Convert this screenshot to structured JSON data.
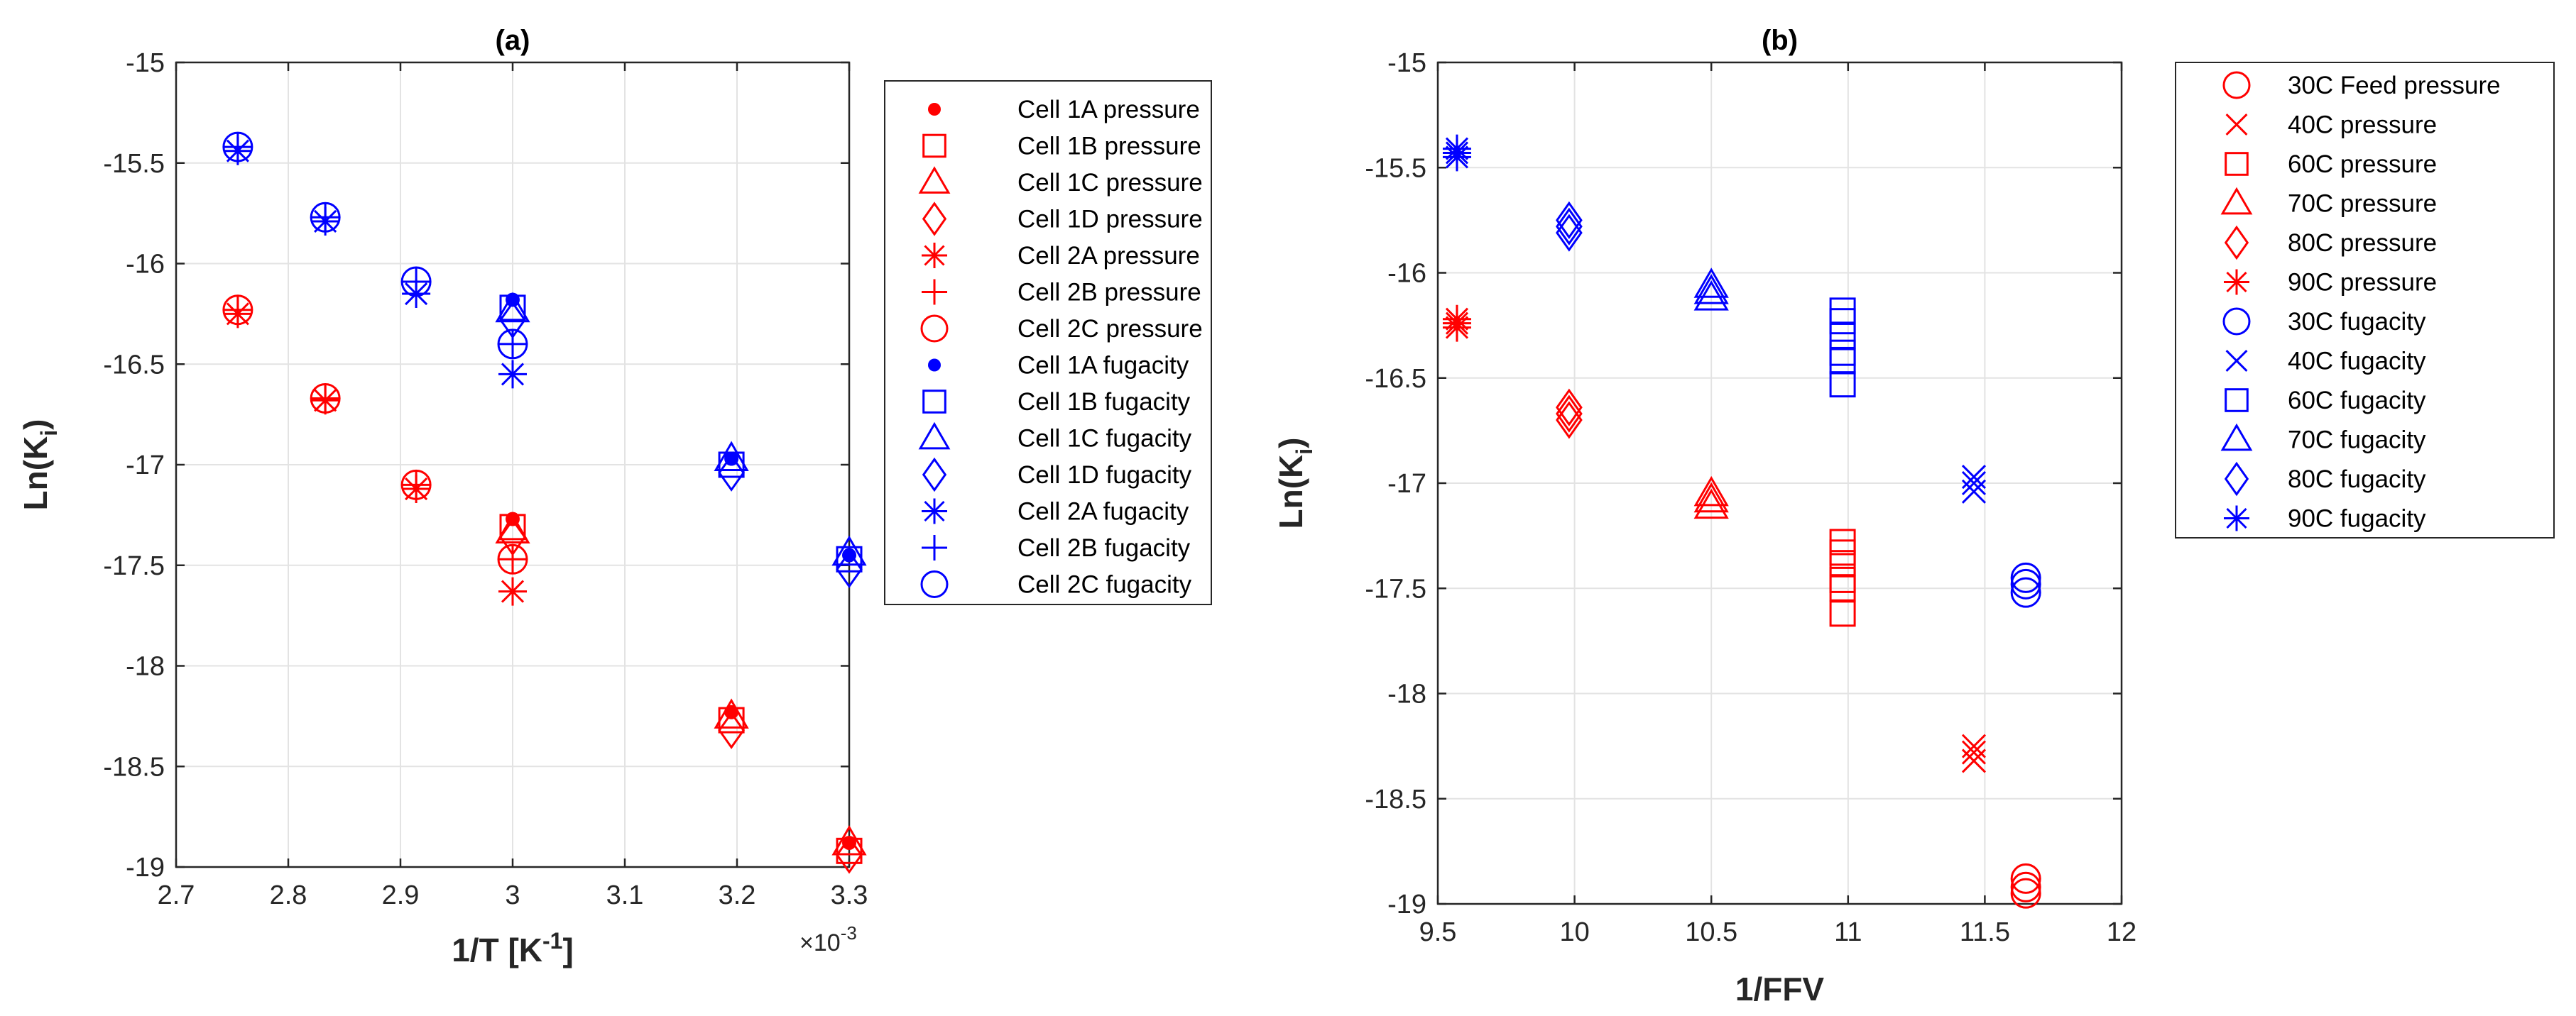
{
  "colors": {
    "red": "#ff0000",
    "blue": "#0000ff",
    "grid": "#e3e3e3",
    "axis": "#262626"
  },
  "chart_data": [
    {
      "type": "scatter",
      "title": "(a)",
      "xlabel_main": "1/T [K",
      "xlabel_sup": "-1",
      "xlabel_end": "]",
      "x_exponent_base": "×10",
      "x_exponent_power": "-3",
      "ylabel_main": "Ln(K",
      "ylabel_sub": "i",
      "ylabel_end": ")",
      "xlim": [
        2.7,
        3.3
      ],
      "ylim": [
        -19,
        -15
      ],
      "xticks": [
        2.7,
        2.8,
        2.9,
        3.0,
        3.1,
        3.2,
        3.3
      ],
      "xtick_labels": [
        "2.7",
        "2.8",
        "2.9",
        "3",
        "3.1",
        "3.2",
        "3.3"
      ],
      "yticks": [
        -15,
        -15.5,
        -16,
        -16.5,
        -17,
        -17.5,
        -18,
        -18.5,
        -19
      ],
      "ytick_labels": [
        "-15",
        "-15.5",
        "-16",
        "-16.5",
        "-17",
        "-17.5",
        "-18",
        "-18.5",
        "-19"
      ],
      "grid": true,
      "legend_position": "outside-right",
      "series": [
        {
          "name": "Cell 1A pressure",
          "marker": "dot",
          "color": "red",
          "x": [
            3.0,
            3.195,
            3.3
          ],
          "y": [
            -17.27,
            -18.23,
            -18.88
          ]
        },
        {
          "name": "Cell 1B pressure",
          "marker": "square",
          "color": "red",
          "x": [
            3.0,
            3.195,
            3.3
          ],
          "y": [
            -17.31,
            -18.27,
            -18.92
          ]
        },
        {
          "name": "Cell 1C pressure",
          "marker": "triangle",
          "color": "red",
          "x": [
            3.0,
            3.195,
            3.3
          ],
          "y": [
            -17.33,
            -18.25,
            -18.88
          ]
        },
        {
          "name": "Cell 1D pressure",
          "marker": "diamond",
          "color": "red",
          "x": [
            3.0,
            3.195,
            3.3
          ],
          "y": [
            -17.36,
            -18.32,
            -18.94
          ]
        },
        {
          "name": "Cell 2A pressure",
          "marker": "asterisk",
          "color": "red",
          "x": [
            2.755,
            2.833,
            2.914,
            3.0
          ],
          "y": [
            -16.25,
            -16.68,
            -17.12,
            -17.63
          ]
        },
        {
          "name": "Cell 2B pressure",
          "marker": "plus",
          "color": "red",
          "x": [
            2.755,
            2.833,
            2.914,
            3.0
          ],
          "y": [
            -16.23,
            -16.67,
            -17.1,
            -17.47
          ]
        },
        {
          "name": "Cell 2C pressure",
          "marker": "circle",
          "color": "red",
          "x": [
            2.755,
            2.833,
            2.914,
            3.0
          ],
          "y": [
            -16.23,
            -16.67,
            -17.1,
            -17.47
          ]
        },
        {
          "name": "Cell 1A fugacity",
          "marker": "dot",
          "color": "blue",
          "x": [
            3.0,
            3.195,
            3.3
          ],
          "y": [
            -16.18,
            -16.97,
            -17.45
          ]
        },
        {
          "name": "Cell 1B fugacity",
          "marker": "square",
          "color": "blue",
          "x": [
            3.0,
            3.195,
            3.3
          ],
          "y": [
            -16.22,
            -17.0,
            -17.47
          ]
        },
        {
          "name": "Cell 1C fugacity",
          "marker": "triangle",
          "color": "blue",
          "x": [
            3.0,
            3.195,
            3.3
          ],
          "y": [
            -16.23,
            -16.97,
            -17.44
          ]
        },
        {
          "name": "Cell 1D fugacity",
          "marker": "diamond",
          "color": "blue",
          "x": [
            3.0,
            3.195,
            3.3
          ],
          "y": [
            -16.28,
            -17.04,
            -17.52
          ]
        },
        {
          "name": "Cell 2A fugacity",
          "marker": "asterisk",
          "color": "blue",
          "x": [
            2.755,
            2.833,
            2.914,
            3.0
          ],
          "y": [
            -15.44,
            -15.79,
            -16.15,
            -16.55
          ]
        },
        {
          "name": "Cell 2B fugacity",
          "marker": "plus",
          "color": "blue",
          "x": [
            2.755,
            2.833,
            2.914,
            3.0
          ],
          "y": [
            -15.42,
            -15.77,
            -16.09,
            -16.4
          ]
        },
        {
          "name": "Cell 2C fugacity",
          "marker": "circle",
          "color": "blue",
          "x": [
            2.755,
            2.833,
            2.914,
            3.0
          ],
          "y": [
            -15.42,
            -15.77,
            -16.09,
            -16.4
          ]
        }
      ]
    },
    {
      "type": "scatter",
      "title": "(b)",
      "xlabel_main": "1/FFV",
      "xlabel_sup": "",
      "xlabel_end": "",
      "x_exponent_base": "",
      "x_exponent_power": "",
      "ylabel_main": "Ln(K",
      "ylabel_sub": "i",
      "ylabel_end": ")",
      "xlim": [
        9.5,
        12
      ],
      "ylim": [
        -19,
        -15
      ],
      "xticks": [
        9.5,
        10,
        10.5,
        11,
        11.5,
        12
      ],
      "xtick_labels": [
        "9.5",
        "10",
        "10.5",
        "11",
        "11.5",
        "12"
      ],
      "yticks": [
        -15,
        -15.5,
        -16,
        -16.5,
        -17,
        -17.5,
        -18,
        -18.5,
        -19
      ],
      "ytick_labels": [
        "-15",
        "-15.5",
        "-16",
        "-16.5",
        "-17",
        "-17.5",
        "-18",
        "-18.5",
        "-19"
      ],
      "grid": true,
      "legend_position": "outside-right",
      "series": [
        {
          "name": "30C Feed pressure",
          "marker": "circle",
          "color": "red",
          "x": [
            11.65,
            11.65,
            11.65
          ],
          "y": [
            -18.88,
            -18.92,
            -18.95
          ]
        },
        {
          "name": "40C pressure",
          "marker": "x",
          "color": "red",
          "x": [
            11.46,
            11.46,
            11.46
          ],
          "y": [
            -18.25,
            -18.28,
            -18.32
          ]
        },
        {
          "name": "60C pressure",
          "marker": "square",
          "color": "red",
          "x": [
            10.98,
            10.98,
            10.98,
            10.98,
            10.98,
            10.98
          ],
          "y": [
            -17.28,
            -17.33,
            -17.38,
            -17.46,
            -17.5,
            -17.62
          ]
        },
        {
          "name": "70C pressure",
          "marker": "triangle",
          "color": "red",
          "x": [
            10.5,
            10.5,
            10.5
          ],
          "y": [
            -17.05,
            -17.08,
            -17.11
          ]
        },
        {
          "name": "80C pressure",
          "marker": "diamond",
          "color": "red",
          "x": [
            9.98,
            9.98,
            9.98
          ],
          "y": [
            -16.64,
            -16.67,
            -16.7
          ]
        },
        {
          "name": "90C pressure",
          "marker": "asterisk",
          "color": "red",
          "x": [
            9.57,
            9.57,
            9.57
          ],
          "y": [
            -16.22,
            -16.24,
            -16.26
          ]
        },
        {
          "name": "30C fugacity",
          "marker": "circle",
          "color": "blue",
          "x": [
            11.65,
            11.65,
            11.65
          ],
          "y": [
            -17.45,
            -17.48,
            -17.52
          ]
        },
        {
          "name": "40C fugacity",
          "marker": "x",
          "color": "blue",
          "x": [
            11.46,
            11.46,
            11.46
          ],
          "y": [
            -16.97,
            -17.0,
            -17.04
          ]
        },
        {
          "name": "60C fugacity",
          "marker": "square",
          "color": "blue",
          "x": [
            10.98,
            10.98,
            10.98,
            10.98,
            10.98,
            10.98
          ],
          "y": [
            -16.18,
            -16.23,
            -16.3,
            -16.38,
            -16.42,
            -16.53
          ]
        },
        {
          "name": "70C fugacity",
          "marker": "triangle",
          "color": "blue",
          "x": [
            10.5,
            10.5,
            10.5
          ],
          "y": [
            -16.06,
            -16.09,
            -16.12
          ]
        },
        {
          "name": "80C fugacity",
          "marker": "diamond",
          "color": "blue",
          "x": [
            9.98,
            9.98,
            9.98
          ],
          "y": [
            -15.75,
            -15.78,
            -15.81
          ]
        },
        {
          "name": "90C fugacity",
          "marker": "asterisk",
          "color": "blue",
          "x": [
            9.57,
            9.57,
            9.57
          ],
          "y": [
            -15.41,
            -15.43,
            -15.45
          ]
        }
      ]
    }
  ]
}
